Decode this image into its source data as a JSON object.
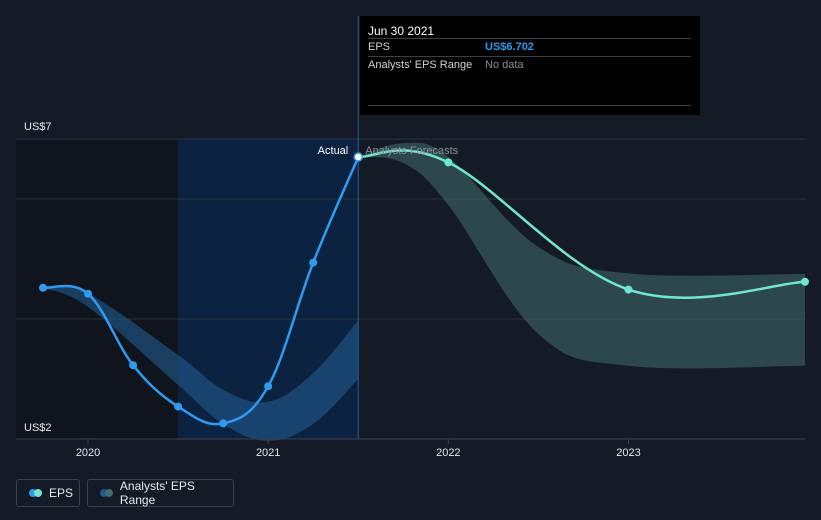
{
  "tooltip": {
    "date": "Jun 30 2021",
    "eps_label": "EPS",
    "eps_value": "US$6.702",
    "range_label": "Analysts' EPS Range",
    "range_value": "No data"
  },
  "labels": {
    "actual": "Actual",
    "forecast": "Analysts Forecasts"
  },
  "legend": {
    "eps": "EPS",
    "range": "Analysts' EPS Range"
  },
  "colors": {
    "eps_actual": "#2e9bf0",
    "eps_forecast": "#6fe7d3",
    "range_past": "#1f5a8e",
    "range_future": "#3f6e6c",
    "background": "#151b26"
  },
  "chart_data": {
    "type": "line",
    "y_tick_labels": [
      "US$2",
      "US$7"
    ],
    "ylim": [
      2,
      7
    ],
    "xlim": [
      2019.6,
      2023.98
    ],
    "x_tick_labels": [
      "2020",
      "2021",
      "2022",
      "2023"
    ],
    "x_ticks": [
      2020,
      2021,
      2022,
      2023
    ],
    "gridlines": [
      2,
      4,
      6,
      7
    ],
    "highlight_range": [
      2020.5,
      2021.5
    ],
    "series": [
      {
        "kind": "actual",
        "points": [
          [
            2019.75,
            4.52
          ],
          [
            2020.0,
            4.42
          ],
          [
            2020.25,
            3.23
          ],
          [
            2020.5,
            2.54
          ],
          [
            2020.75,
            2.26
          ],
          [
            2021.0,
            2.88
          ],
          [
            2021.25,
            4.94
          ],
          [
            2021.5,
            6.7
          ]
        ]
      },
      {
        "kind": "forecast",
        "points": [
          [
            2021.5,
            6.7
          ],
          [
            2022.0,
            6.61
          ],
          [
            2023.0,
            4.49
          ],
          [
            2023.98,
            4.62
          ]
        ]
      }
    ],
    "range_past": {
      "x": [
        2019.75,
        2020.0,
        2020.5,
        2020.75,
        2021.0,
        2021.25,
        2021.5
      ],
      "high": [
        4.52,
        4.42,
        3.4,
        2.82,
        2.62,
        3.1,
        3.98
      ],
      "low": [
        4.52,
        4.2,
        2.9,
        2.25,
        1.97,
        2.25,
        3.0
      ]
    },
    "range_future": {
      "x": [
        2021.5,
        2021.75,
        2022.0,
        2022.5,
        2023.0,
        2023.98
      ],
      "high": [
        6.7,
        6.93,
        6.7,
        5.2,
        4.76,
        4.75
      ],
      "low": [
        6.7,
        6.6,
        5.9,
        3.75,
        3.22,
        3.22
      ]
    }
  }
}
